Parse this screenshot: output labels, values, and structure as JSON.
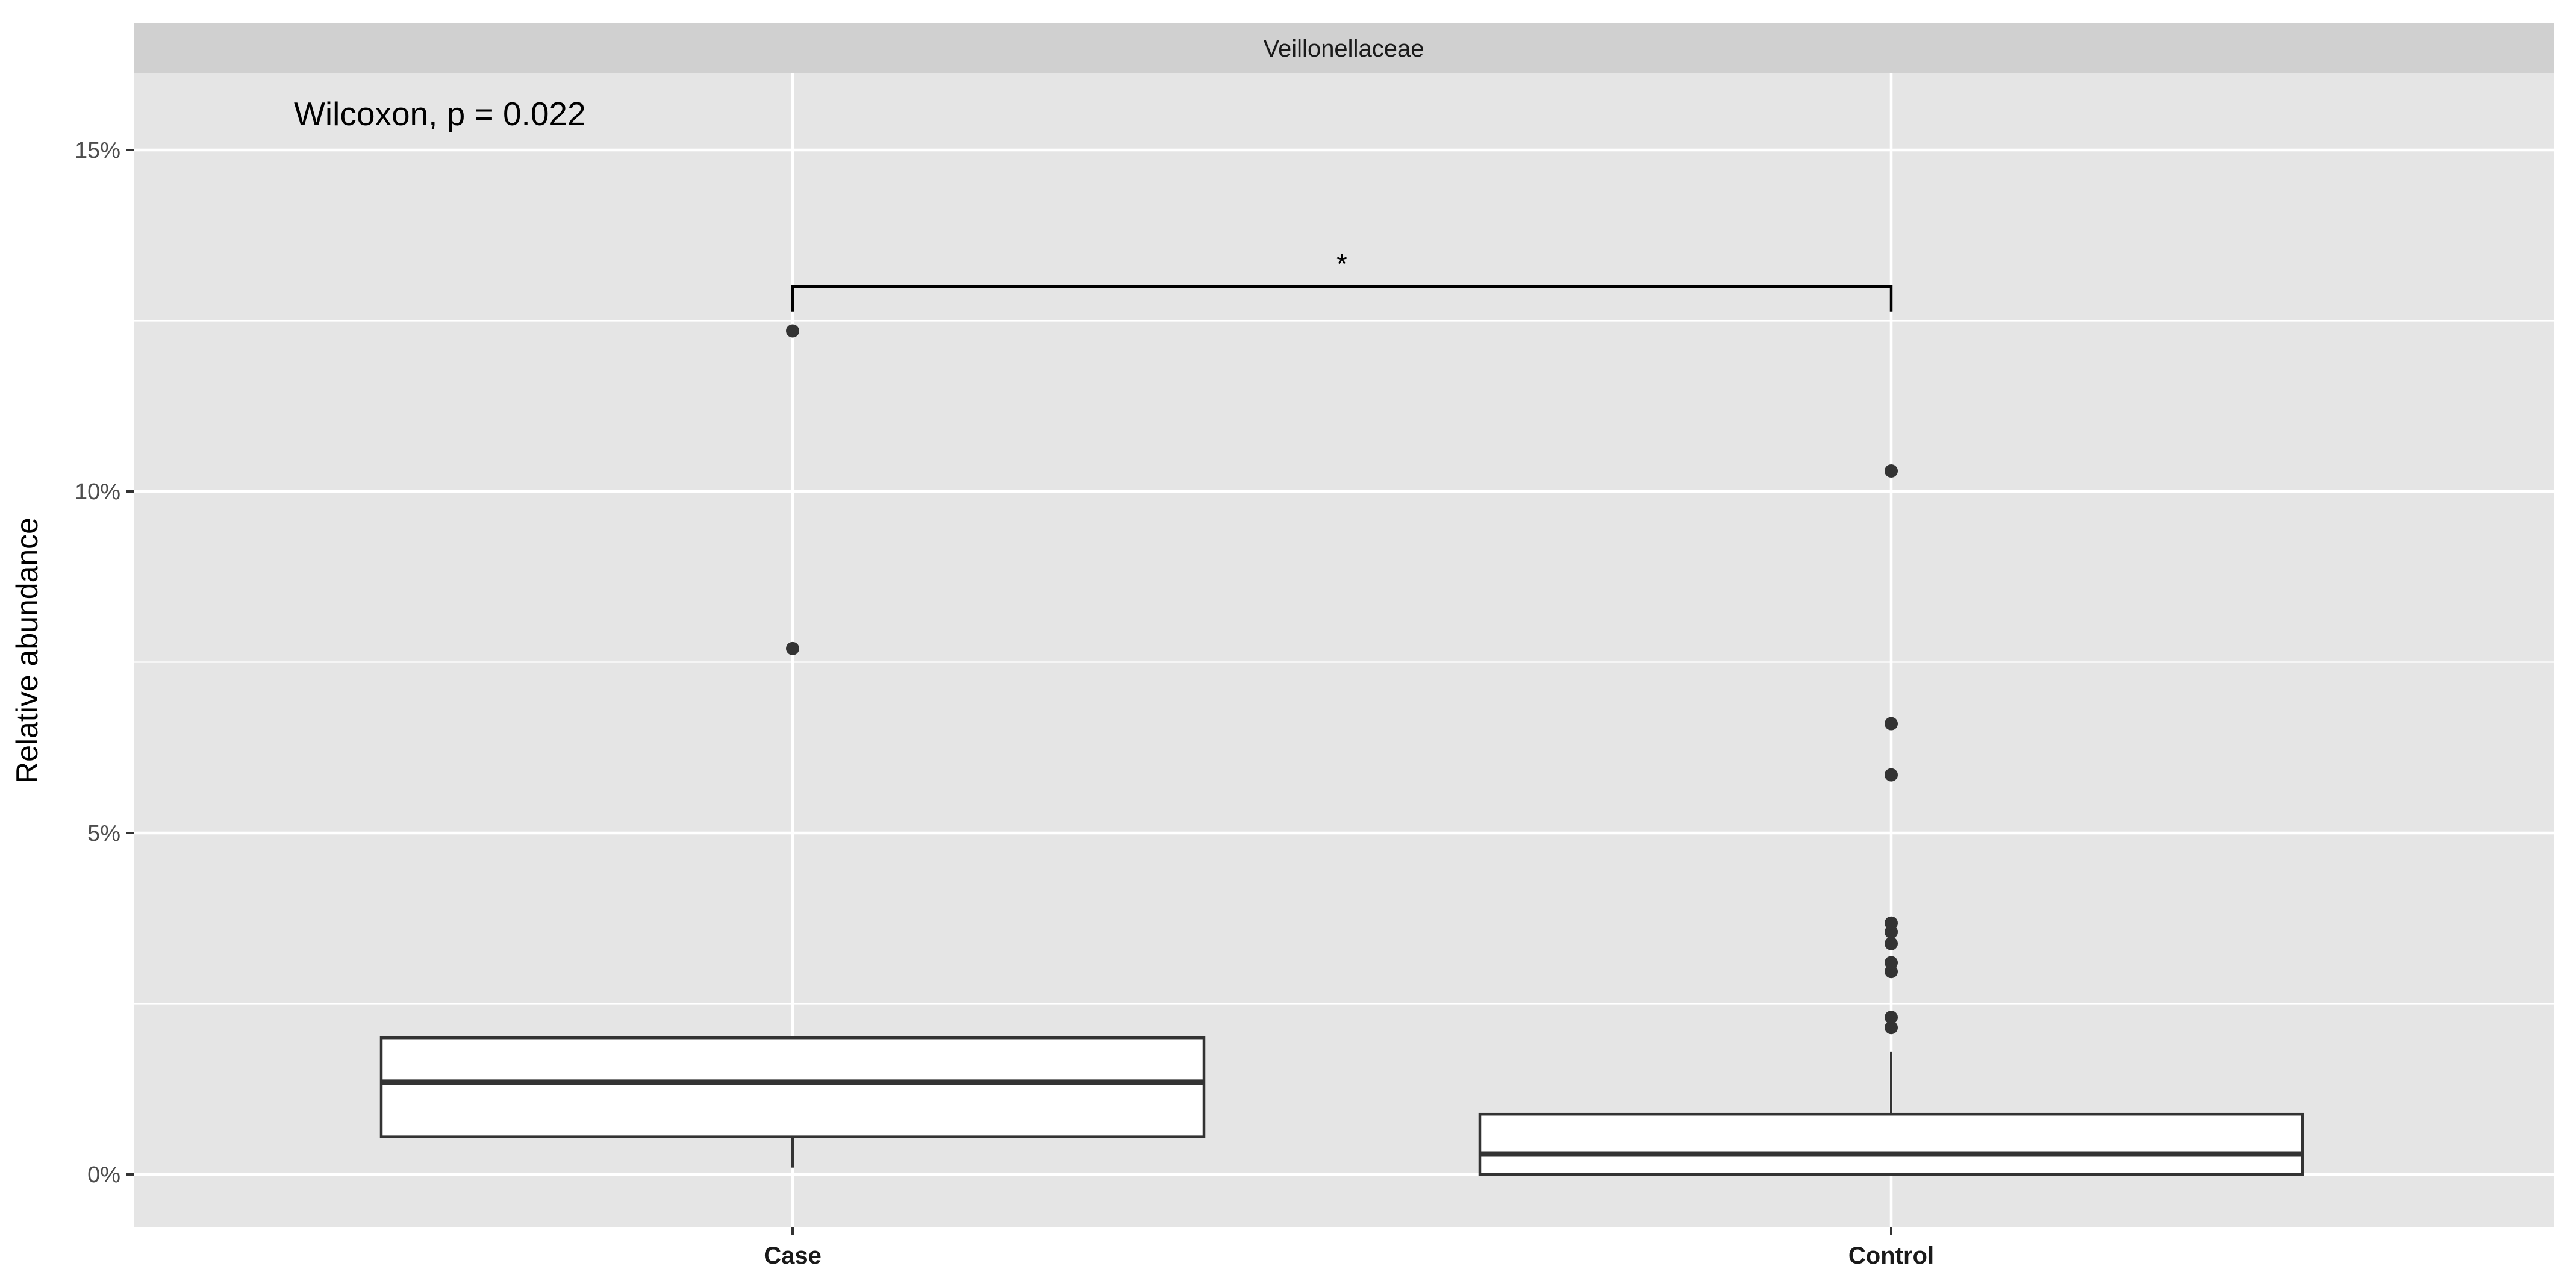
{
  "chart_data": {
    "type": "boxplot",
    "facet": "Veillonellaceae",
    "ylabel": "Relative abundance",
    "ylim": [
      -1.5,
      16.5
    ],
    "y_ticks": [
      0,
      5,
      10,
      15
    ],
    "y_tick_labels": [
      "0%",
      "5%",
      "10%",
      "15%"
    ],
    "y_unit": "%",
    "grid": true,
    "categories": [
      "Case",
      "Control"
    ],
    "boxes": [
      {
        "category": "Case",
        "whisker_low": 0.1,
        "q1": 0.55,
        "median": 1.35,
        "q3": 2.0,
        "whisker_high": 2.0,
        "outliers": [
          7.7,
          12.35
        ]
      },
      {
        "category": "Control",
        "whisker_low": 0.0,
        "q1": 0.0,
        "median": 0.3,
        "q3": 0.88,
        "whisker_high": 1.8,
        "outliers": [
          2.15,
          2.3,
          2.97,
          3.1,
          3.38,
          3.55,
          3.68,
          5.85,
          6.6,
          10.3
        ]
      }
    ],
    "annotation": "Wilcoxon, p = 0.022",
    "significance": {
      "label": "*",
      "y": 13.0,
      "from": "Case",
      "to": "Control"
    }
  },
  "colors": {
    "panel_bg": "#e5e5e5",
    "strip_bg": "#d0d0d0",
    "grid_major": "#ffffff",
    "box_fill": "#ffffff",
    "box_stroke": "#333333",
    "point": "#333333"
  }
}
